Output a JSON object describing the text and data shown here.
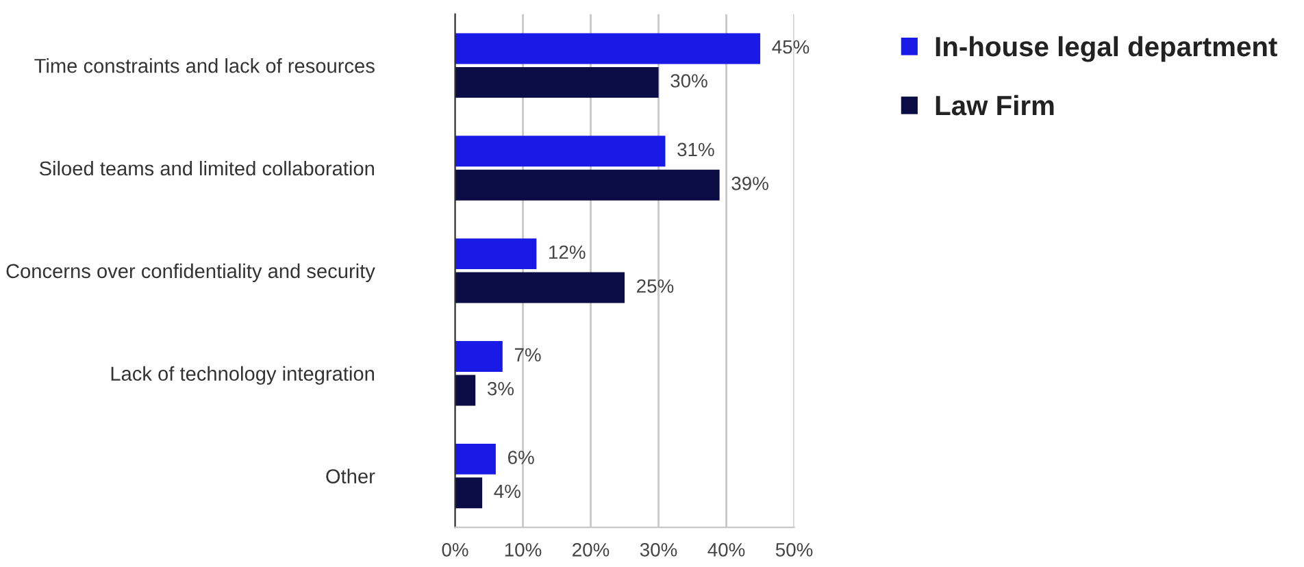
{
  "chart_data": {
    "type": "bar",
    "orientation": "horizontal",
    "categories": [
      "Time constraints and lack of resources",
      "Siloed teams and limited collaboration",
      "Concerns over confidentiality and security",
      "Lack of technology integration",
      "Other"
    ],
    "series": [
      {
        "name": "In-house legal department",
        "color": "#1a1ae6",
        "values": [
          45,
          31,
          12,
          7,
          6
        ],
        "value_labels": [
          "45%",
          "31%",
          "12%",
          "7%",
          "6%"
        ]
      },
      {
        "name": "Law Firm",
        "color": "#0b0b45",
        "values": [
          30,
          39,
          25,
          3,
          4
        ],
        "value_labels": [
          "30%",
          "39%",
          "25%",
          "3%",
          "4%"
        ]
      }
    ],
    "xlim": [
      0,
      50
    ],
    "xticks": [
      {
        "value": 0,
        "label": "0%"
      },
      {
        "value": 10,
        "label": "10%"
      },
      {
        "value": 20,
        "label": "20%"
      },
      {
        "value": 30,
        "label": "30%"
      },
      {
        "value": 40,
        "label": "40%"
      },
      {
        "value": 50,
        "label": "50%"
      }
    ],
    "grid": "x",
    "legend": "top right"
  }
}
